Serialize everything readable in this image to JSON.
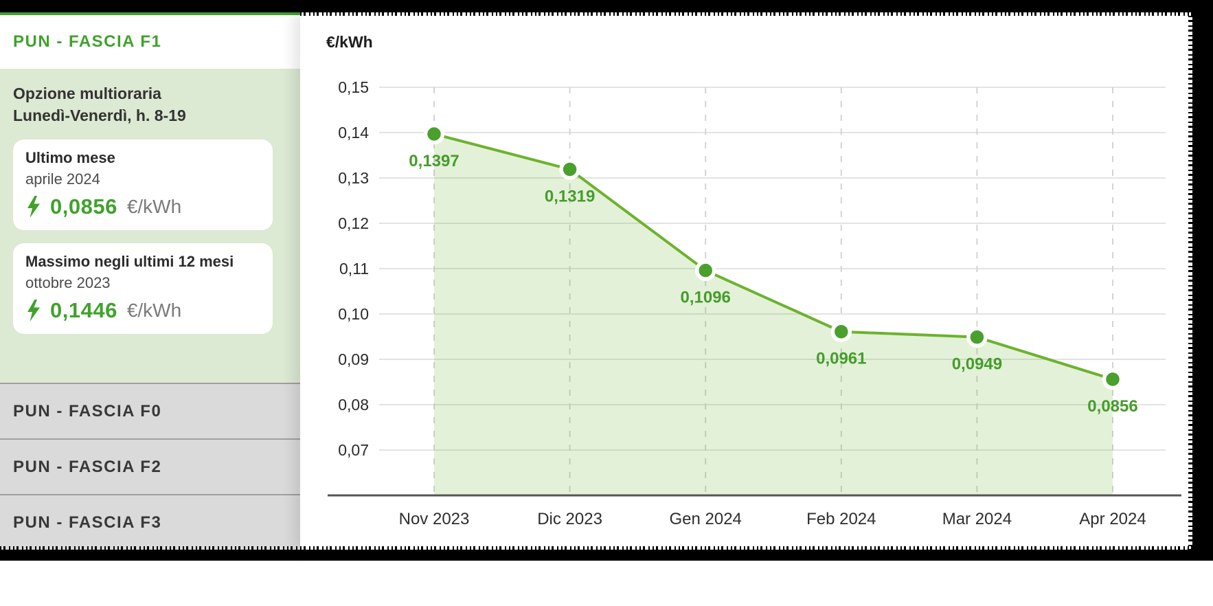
{
  "sidebar": {
    "active_tab": {
      "label": "PUN - FASCIA F1"
    },
    "panel": {
      "heading_line1": "Opzione multioraria",
      "heading_line2": "Lunedì-Venerdì, h. 8-19",
      "cards": [
        {
          "title": "Ultimo mese",
          "period": "aprile 2024",
          "value": "0,0856",
          "unit": "€/kWh"
        },
        {
          "title": "Massimo negli ultimi 12 mesi",
          "period": "ottobre 2023",
          "value": "0,1446",
          "unit": "€/kWh"
        }
      ]
    },
    "inactive_tabs": [
      {
        "label": "PUN - FASCIA F0"
      },
      {
        "label": "PUN - FASCIA F2"
      },
      {
        "label": "PUN - FASCIA F3"
      }
    ]
  },
  "chart_data": {
    "type": "area",
    "title": "€/kWh",
    "categories": [
      "Nov 2023",
      "Dic 2023",
      "Gen 2024",
      "Feb 2024",
      "Mar 2024",
      "Apr 2024"
    ],
    "values": [
      0.1397,
      0.1319,
      0.1096,
      0.0961,
      0.0949,
      0.0856
    ],
    "point_labels": [
      "0,1397",
      "0,1319",
      "0,1096",
      "0,0961",
      "0,0949",
      "0,0856"
    ],
    "ytick_labels": [
      "0,15",
      "0,14",
      "0,13",
      "0,12",
      "0,11",
      "0,10",
      "0,09",
      "0,08",
      "0,07"
    ],
    "ytick_values": [
      0.15,
      0.14,
      0.13,
      0.12,
      0.11,
      0.1,
      0.09,
      0.08,
      0.07
    ],
    "ylim": [
      0.06,
      0.153
    ],
    "grid": {
      "horizontal": "solid",
      "vertical": "dashed"
    },
    "legend": "none",
    "colors": {
      "line": "#6cb32e",
      "fill": "rgba(106,179,47,0.18)",
      "dot": "#4aa02c",
      "dot_ring": "#ffffff",
      "point_label": "#459d2b",
      "accent": "#3fa22b",
      "axis": "#555555",
      "grid_h": "#e3e3e3",
      "grid_v": "#d4d4d4",
      "tick_text": "#2a2a2a"
    }
  }
}
